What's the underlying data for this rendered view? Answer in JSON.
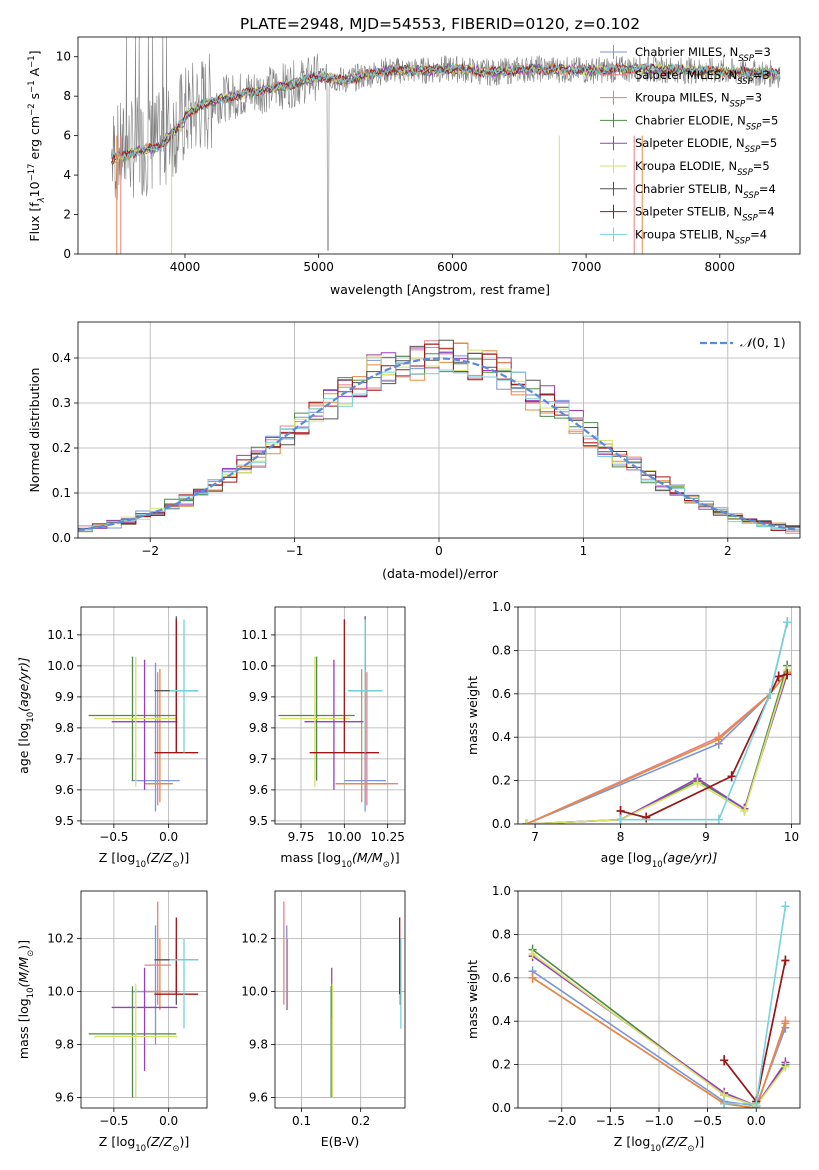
{
  "figure": {
    "title": "PLATE=2948, MJD=54553, FIBERID=0120, z=0.102"
  },
  "colors": {
    "Chabrier MILES": "#7b95d8",
    "Salpeter MILES": "#e87f86",
    "Kroupa MILES": "#e58a45",
    "Chabrier ELODIE": "#4f8a49",
    "Salpeter ELODIE": "#9a3fbf",
    "Kroupa ELODIE": "#d7e26a",
    "Chabrier STELIB": "#555555",
    "Salpeter STELIB": "#a01616",
    "Kroupa STELIB": "#76d2dc",
    "normal": "#5b8bd8",
    "grid": "#b0b0b0",
    "data": "#808080"
  },
  "chart_data": [
    {
      "id": "spectrum",
      "type": "line",
      "ylabel_main": "Flux [f",
      "ylabel_sub_lambda": "λ",
      "ylabel_rest": "10",
      "ylabel_exp": "−17",
      "ylabel_tail": " erg cm",
      "ylabel_exp2": "−2",
      "ylabel_tail2": " s",
      "ylabel_exp3": "−1",
      "ylabel_tail3": " A",
      "ylabel_exp4": "−1",
      "ylabel_end": "]",
      "xlabel": "wavelength [Angstrom, rest frame]",
      "xlim": [
        3200,
        8600
      ],
      "ylim": [
        0,
        11
      ],
      "xticks": [
        4000,
        5000,
        6000,
        7000,
        8000
      ],
      "yticks": [
        0,
        2,
        4,
        6,
        8,
        10
      ],
      "x_knots": [
        3450,
        3600,
        3700,
        3800,
        3900,
        4000,
        4100,
        4300,
        4500,
        4800,
        5000,
        5200,
        5500,
        5800,
        6000,
        6300,
        6600,
        7000,
        7400,
        7800,
        8200,
        8450
      ],
      "y_knots": [
        5.0,
        5.3,
        5.5,
        5.6,
        6.3,
        7.0,
        7.5,
        7.9,
        8.2,
        8.6,
        9.0,
        8.8,
        9.3,
        9.3,
        9.4,
        9.2,
        9.4,
        9.3,
        9.4,
        9.3,
        9.2,
        9.1
      ],
      "legend": [
        {
          "label": "Chabrier MILES, N",
          "sub": "SSP",
          "tail": "=3",
          "key": "Chabrier MILES"
        },
        {
          "label": "Salpeter MILES, N",
          "sub": "SSP",
          "tail": "=3",
          "key": "Salpeter MILES"
        },
        {
          "label": "Kroupa MILES, N",
          "sub": "SSP",
          "tail": "=3",
          "key": "Kroupa MILES"
        },
        {
          "label": "Chabrier ELODIE, N",
          "sub": "SSP",
          "tail": "=5",
          "key": "Chabrier ELODIE"
        },
        {
          "label": "Salpeter ELODIE, N",
          "sub": "SSP",
          "tail": "=5",
          "key": "Salpeter ELODIE"
        },
        {
          "label": "Kroupa ELODIE, N",
          "sub": "SSP",
          "tail": "=5",
          "key": "Kroupa ELODIE"
        },
        {
          "label": "Chabrier STELIB, N",
          "sub": "SSP",
          "tail": "=4",
          "key": "Chabrier STELIB"
        },
        {
          "label": "Salpeter STELIB, N",
          "sub": "SSP",
          "tail": "=4",
          "key": "Salpeter STELIB"
        },
        {
          "label": "Kroupa STELIB, N",
          "sub": "SSP",
          "tail": "=4",
          "key": "Kroupa STELIB"
        }
      ]
    },
    {
      "id": "residuals",
      "type": "histogram",
      "xlabel": "(data-model)/error",
      "ylabel": "Normed distribution",
      "xlim": [
        -2.5,
        2.5
      ],
      "ylim": [
        0,
        0.48
      ],
      "xticks": [
        -2,
        -1,
        0,
        1,
        2
      ],
      "xticklabels": [
        "−2",
        "−1",
        "0",
        "1",
        "2"
      ],
      "yticks": [
        0.0,
        0.1,
        0.2,
        0.3,
        0.4
      ],
      "yticklabels": [
        "0.0",
        "0.1",
        "0.2",
        "0.3",
        "0.4"
      ],
      "bin_width": 0.1,
      "legend_label": "(0, 1)",
      "legend_symbol": "𝒩"
    },
    {
      "id": "age_vs_Z",
      "type": "errorbar",
      "xlabel": "Z [log",
      "xlabel_sub": "10",
      "xlabel_rest": "(Z/Z",
      "xlabel_sun": "⊙",
      "xlabel_end": ")]",
      "ylabel": "age  [log",
      "ylabel_sub": "10",
      "ylabel_rest": "(age/yr)]",
      "xlim": [
        -0.8,
        0.35
      ],
      "ylim": [
        9.49,
        10.19
      ],
      "xticks": [
        -0.5,
        0.0
      ],
      "xticklabels": [
        "−0.5",
        "0.0"
      ],
      "yticks": [
        9.5,
        9.6,
        9.7,
        9.8,
        9.9,
        10.0,
        10.1
      ],
      "yticklabels": [
        "9.5",
        "9.6",
        "9.7",
        "9.8",
        "9.9",
        "10.0",
        "10.1"
      ],
      "points": [
        {
          "key": "Chabrier MILES",
          "x": -0.12,
          "xerr": 0.22,
          "y": 9.63,
          "ylo": 9.53,
          "yhi": 10.01
        },
        {
          "key": "Salpeter MILES",
          "x": -0.1,
          "xerr": 0.12,
          "y": 9.62,
          "ylo": 9.55,
          "yhi": 9.98
        },
        {
          "key": "Kroupa MILES",
          "x": -0.08,
          "xerr": 0.12,
          "y": 9.62,
          "ylo": 9.56,
          "yhi": 9.99
        },
        {
          "key": "Chabrier ELODIE",
          "x": -0.33,
          "xerr": 0.4,
          "y": 9.84,
          "ylo": 9.63,
          "yhi": 10.03
        },
        {
          "key": "Salpeter ELODIE",
          "x": -0.22,
          "xerr": 0.3,
          "y": 9.82,
          "ylo": 9.6,
          "yhi": 10.02
        },
        {
          "key": "Kroupa ELODIE",
          "x": -0.3,
          "xerr": 0.38,
          "y": 9.83,
          "ylo": 9.61,
          "yhi": 10.03
        },
        {
          "key": "Chabrier STELIB",
          "x": 0.07,
          "xerr": 0.2,
          "y": 9.92,
          "ylo": 9.72,
          "yhi": 10.16
        },
        {
          "key": "Salpeter STELIB",
          "x": 0.07,
          "xerr": 0.2,
          "y": 9.72,
          "ylo": 9.72,
          "yhi": 10.15
        },
        {
          "key": "Kroupa STELIB",
          "x": 0.14,
          "xerr": 0.13,
          "y": 9.92,
          "ylo": 9.72,
          "yhi": 10.15
        }
      ]
    },
    {
      "id": "age_vs_mass",
      "type": "errorbar",
      "xlabel": "mass [log",
      "xlabel_sub": "10",
      "xlabel_rest": "(M/M",
      "xlabel_sun": "⊙",
      "xlabel_end": ")]",
      "xlim": [
        9.6,
        10.35
      ],
      "ylim": [
        9.49,
        10.19
      ],
      "xticks": [
        9.75,
        10.0,
        10.25
      ],
      "xticklabels": [
        "9.75",
        "10.00",
        "10.25"
      ],
      "yticks": [
        9.5,
        9.6,
        9.7,
        9.8,
        9.9,
        10.0,
        10.1
      ],
      "yticklabels": [
        "9.5",
        "9.6",
        "9.7",
        "9.8",
        "9.9",
        "10.0",
        "10.1"
      ],
      "points": [
        {
          "key": "Chabrier MILES",
          "x": 10.12,
          "xerr": 0.12,
          "y": 9.63,
          "ylo": 9.53,
          "yhi": 10.01
        },
        {
          "key": "Salpeter MILES",
          "x": 10.13,
          "xerr": 0.18,
          "y": 9.62,
          "ylo": 9.55,
          "yhi": 9.98
        },
        {
          "key": "Kroupa MILES",
          "x": 10.1,
          "xerr": 0.15,
          "y": 9.62,
          "ylo": 9.56,
          "yhi": 9.99
        },
        {
          "key": "Chabrier ELODIE",
          "x": 9.84,
          "xerr": 0.22,
          "y": 9.84,
          "ylo": 9.63,
          "yhi": 10.03
        },
        {
          "key": "Salpeter ELODIE",
          "x": 9.94,
          "xerr": 0.17,
          "y": 9.82,
          "ylo": 9.6,
          "yhi": 10.02
        },
        {
          "key": "Kroupa ELODIE",
          "x": 9.83,
          "xerr": 0.2,
          "y": 9.83,
          "ylo": 9.61,
          "yhi": 10.03
        },
        {
          "key": "Chabrier STELIB",
          "x": 10.12,
          "xerr": 0.1,
          "y": 9.92,
          "ylo": 9.72,
          "yhi": 10.16
        },
        {
          "key": "Salpeter STELIB",
          "x": 10.0,
          "xerr": 0.2,
          "y": 9.72,
          "ylo": 9.72,
          "yhi": 10.15
        },
        {
          "key": "Kroupa STELIB",
          "x": 10.12,
          "xerr": 0.1,
          "y": 9.92,
          "ylo": 9.72,
          "yhi": 10.15
        }
      ]
    },
    {
      "id": "weight_vs_age",
      "type": "line",
      "xlabel": "age  [log",
      "xlabel_sub": "10",
      "xlabel_rest": "(age/yr)]",
      "ylabel": "mass weight",
      "xlim": [
        6.8,
        10.1
      ],
      "ylim": [
        0,
        1.0
      ],
      "xticks": [
        7,
        8,
        9,
        10
      ],
      "xticklabels": [
        "7",
        "8",
        "9",
        "10"
      ],
      "yticks": [
        0.0,
        0.2,
        0.4,
        0.6,
        0.8,
        1.0
      ],
      "yticklabels": [
        "0.0",
        "0.2",
        "0.4",
        "0.6",
        "0.8",
        "1.0"
      ],
      "series": [
        {
          "key": "Chabrier MILES",
          "x": [
            6.9,
            9.15,
            9.75,
            9.95
          ],
          "y": [
            0.0,
            0.37,
            0.6,
            0.93
          ]
        },
        {
          "key": "Salpeter MILES",
          "x": [
            6.9,
            9.15,
            9.75,
            9.95
          ],
          "y": [
            0.0,
            0.4,
            0.6,
            0.7
          ]
        },
        {
          "key": "Kroupa MILES",
          "x": [
            6.9,
            9.15,
            9.75,
            9.95
          ],
          "y": [
            0.0,
            0.39,
            0.6,
            0.7
          ]
        },
        {
          "key": "Chabrier ELODIE",
          "x": [
            6.9,
            8.0,
            8.9,
            9.45,
            9.95
          ],
          "y": [
            0.0,
            0.02,
            0.2,
            0.07,
            0.73
          ]
        },
        {
          "key": "Salpeter ELODIE",
          "x": [
            6.9,
            8.0,
            8.9,
            9.45,
            9.95
          ],
          "y": [
            0.0,
            0.02,
            0.21,
            0.07,
            0.69
          ]
        },
        {
          "key": "Kroupa ELODIE",
          "x": [
            6.9,
            8.0,
            8.9,
            9.45,
            9.95
          ],
          "y": [
            0.0,
            0.02,
            0.19,
            0.06,
            0.71
          ]
        },
        {
          "key": "Chabrier STELIB",
          "x": [
            8.0,
            8.3,
            9.3,
            9.85,
            9.95
          ],
          "y": [
            0.06,
            0.03,
            0.22,
            0.68,
            0.69
          ]
        },
        {
          "key": "Salpeter STELIB",
          "x": [
            8.0,
            8.3,
            9.3,
            9.85,
            9.95
          ],
          "y": [
            0.06,
            0.03,
            0.22,
            0.68,
            0.69
          ]
        },
        {
          "key": "Kroupa STELIB",
          "x": [
            8.0,
            9.15,
            9.75,
            9.95
          ],
          "y": [
            0.02,
            0.02,
            0.6,
            0.93
          ]
        }
      ]
    },
    {
      "id": "mass_vs_Z",
      "type": "errorbar",
      "xlabel": "Z [log",
      "xlabel_sub": "10",
      "xlabel_rest": "(Z/Z",
      "xlabel_sun": "⊙",
      "xlabel_end": ")]",
      "ylabel": "mass [log",
      "ylabel_sub": "10",
      "ylabel_rest": "(M/M",
      "ylabel_sun": "⊙",
      "ylabel_end": ")]",
      "xlim": [
        -0.8,
        0.35
      ],
      "ylim": [
        9.56,
        10.38
      ],
      "xticks": [
        -0.5,
        0.0
      ],
      "xticklabels": [
        "−0.5",
        "0.0"
      ],
      "yticks": [
        9.6,
        9.8,
        10.0,
        10.2
      ],
      "yticklabels": [
        "9.6",
        "9.8",
        "10.0",
        "10.2"
      ],
      "points": [
        {
          "key": "Chabrier MILES",
          "x": -0.12,
          "xerr": 0.22,
          "y": 10.0,
          "ylo": 9.8,
          "yhi": 10.25
        },
        {
          "key": "Salpeter MILES",
          "x": -0.1,
          "xerr": 0.12,
          "y": 10.1,
          "ylo": 9.95,
          "yhi": 10.34
        },
        {
          "key": "Kroupa MILES",
          "x": -0.08,
          "xerr": 0.12,
          "y": 10.0,
          "ylo": 9.93,
          "yhi": 10.2
        },
        {
          "key": "Chabrier ELODIE",
          "x": -0.33,
          "xerr": 0.4,
          "y": 9.84,
          "ylo": 9.6,
          "yhi": 10.02
        },
        {
          "key": "Salpeter ELODIE",
          "x": -0.22,
          "xerr": 0.3,
          "y": 9.94,
          "ylo": 9.7,
          "yhi": 10.09
        },
        {
          "key": "Kroupa ELODIE",
          "x": -0.3,
          "xerr": 0.38,
          "y": 9.83,
          "ylo": 9.6,
          "yhi": 10.03
        },
        {
          "key": "Chabrier STELIB",
          "x": 0.07,
          "xerr": 0.2,
          "y": 10.12,
          "ylo": 9.95,
          "yhi": 10.2
        },
        {
          "key": "Salpeter STELIB",
          "x": 0.07,
          "xerr": 0.2,
          "y": 9.99,
          "ylo": 9.99,
          "yhi": 10.28
        },
        {
          "key": "Kroupa STELIB",
          "x": 0.14,
          "xerr": 0.13,
          "y": 10.12,
          "ylo": 9.86,
          "yhi": 10.2
        }
      ]
    },
    {
      "id": "mass_vs_ebv",
      "type": "errorbar",
      "xlabel": "E(B-V)",
      "xlim": [
        0.055,
        0.275
      ],
      "ylim": [
        9.56,
        10.38
      ],
      "xticks": [
        0.1,
        0.2
      ],
      "xticklabels": [
        "0.1",
        "0.2"
      ],
      "yticks": [
        9.6,
        9.8,
        10.0,
        10.2
      ],
      "yticklabels": [
        "9.6",
        "9.8",
        "10.0",
        "10.2"
      ],
      "points": [
        {
          "key": "Chabrier MILES",
          "x": 0.075,
          "y": 10.0,
          "ylo": 9.93,
          "yhi": 10.25
        },
        {
          "key": "Salpeter MILES",
          "x": 0.07,
          "y": 10.1,
          "ylo": 9.95,
          "yhi": 10.34
        },
        {
          "key": "Kroupa MILES",
          "x": 0.076,
          "y": 10.0,
          "ylo": 9.93,
          "yhi": 10.2
        },
        {
          "key": "Chabrier ELODIE",
          "x": 0.15,
          "y": 9.84,
          "ylo": 9.6,
          "yhi": 10.02
        },
        {
          "key": "Salpeter ELODIE",
          "x": 0.151,
          "y": 9.94,
          "ylo": 9.9,
          "yhi": 10.09
        },
        {
          "key": "Kroupa ELODIE",
          "x": 0.152,
          "y": 9.83,
          "ylo": 9.6,
          "yhi": 10.03
        },
        {
          "key": "Chabrier STELIB",
          "x": 0.267,
          "y": 10.12,
          "ylo": 9.95,
          "yhi": 10.2
        },
        {
          "key": "Salpeter STELIB",
          "x": 0.266,
          "y": 9.99,
          "ylo": 9.99,
          "yhi": 10.28
        },
        {
          "key": "Kroupa STELIB",
          "x": 0.268,
          "y": 10.12,
          "ylo": 9.86,
          "yhi": 10.2
        }
      ]
    },
    {
      "id": "weight_vs_Z",
      "type": "line",
      "xlabel": "Z [log",
      "xlabel_sub": "10",
      "xlabel_rest": "(Z/Z",
      "xlabel_sun": "⊙",
      "xlabel_end": ")]",
      "ylabel": "mass weight",
      "xlim": [
        -2.45,
        0.45
      ],
      "ylim": [
        0,
        1.0
      ],
      "xticks": [
        -2.0,
        -1.5,
        -1.0,
        -0.5,
        0.0
      ],
      "xticklabels": [
        "−2.0",
        "−1.5",
        "−1.0",
        "−0.5",
        "0.0"
      ],
      "yticks": [
        0.0,
        0.2,
        0.4,
        0.6,
        0.8,
        1.0
      ],
      "yticklabels": [
        "0.0",
        "0.2",
        "0.4",
        "0.6",
        "0.8",
        "1.0"
      ],
      "series": [
        {
          "key": "Chabrier MILES",
          "x": [
            -2.3,
            -0.33,
            0.0,
            0.3
          ],
          "y": [
            0.63,
            0.03,
            0.01,
            0.37
          ]
        },
        {
          "key": "Salpeter MILES",
          "x": [
            -2.3,
            -0.33,
            0.0,
            0.3
          ],
          "y": [
            0.6,
            0.02,
            0.0,
            0.4
          ]
        },
        {
          "key": "Kroupa MILES",
          "x": [
            -2.3,
            -0.33,
            0.0,
            0.3
          ],
          "y": [
            0.6,
            0.02,
            0.0,
            0.39
          ]
        },
        {
          "key": "Chabrier ELODIE",
          "x": [
            -2.3,
            -0.33,
            0.0,
            0.3
          ],
          "y": [
            0.73,
            0.06,
            0.01,
            0.2
          ]
        },
        {
          "key": "Salpeter ELODIE",
          "x": [
            -2.3,
            -0.33,
            0.0,
            0.3
          ],
          "y": [
            0.7,
            0.07,
            0.01,
            0.21
          ]
        },
        {
          "key": "Kroupa ELODIE",
          "x": [
            -2.3,
            -0.33,
            0.0,
            0.3
          ],
          "y": [
            0.71,
            0.06,
            0.01,
            0.19
          ]
        },
        {
          "key": "Chabrier STELIB",
          "x": [
            -0.33,
            0.0,
            0.3
          ],
          "y": [
            0.22,
            0.03,
            0.68
          ]
        },
        {
          "key": "Salpeter STELIB",
          "x": [
            -0.33,
            0.0,
            0.3
          ],
          "y": [
            0.22,
            0.03,
            0.68
          ]
        },
        {
          "key": "Kroupa STELIB",
          "x": [
            -0.33,
            0.0,
            0.3
          ],
          "y": [
            0.02,
            0.02,
            0.93
          ]
        }
      ]
    }
  ]
}
